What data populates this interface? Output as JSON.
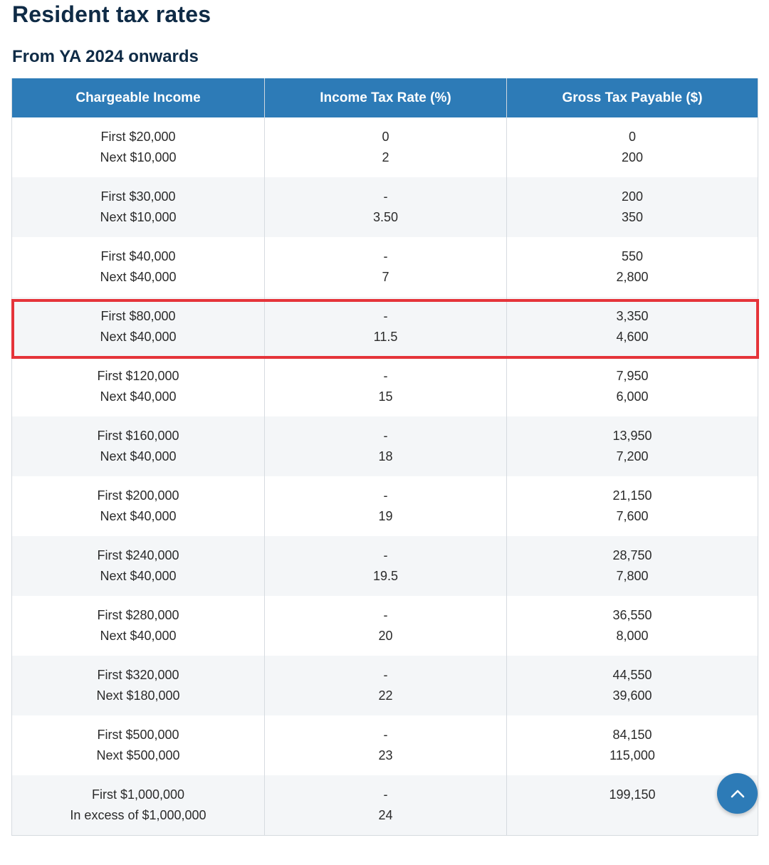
{
  "page": {
    "title": "Resident tax rates",
    "subtitle": "From YA 2024 onwards"
  },
  "table": {
    "headers": [
      "Chargeable Income",
      "Income Tax Rate (%)",
      "Gross Tax Payable ($)"
    ],
    "rows": [
      {
        "income": [
          "First $20,000",
          "Next $10,000"
        ],
        "rate": [
          "0",
          "2"
        ],
        "payable": [
          "0",
          "200"
        ]
      },
      {
        "income": [
          "First $30,000",
          "Next $10,000"
        ],
        "rate": [
          "-",
          "3.50"
        ],
        "payable": [
          "200",
          "350"
        ]
      },
      {
        "income": [
          "First $40,000",
          "Next $40,000"
        ],
        "rate": [
          "-",
          "7"
        ],
        "payable": [
          "550",
          "2,800"
        ]
      },
      {
        "income": [
          "First $80,000",
          "Next $40,000"
        ],
        "rate": [
          "-",
          "11.5"
        ],
        "payable": [
          "3,350",
          "4,600"
        ]
      },
      {
        "income": [
          "First $120,000",
          "Next $40,000"
        ],
        "rate": [
          "-",
          "15"
        ],
        "payable": [
          "7,950",
          "6,000"
        ]
      },
      {
        "income": [
          "First $160,000",
          "Next $40,000"
        ],
        "rate": [
          "-",
          "18"
        ],
        "payable": [
          "13,950",
          "7,200"
        ]
      },
      {
        "income": [
          "First $200,000",
          "Next $40,000"
        ],
        "rate": [
          "-",
          "19"
        ],
        "payable": [
          "21,150",
          "7,600"
        ]
      },
      {
        "income": [
          "First $240,000",
          "Next $40,000"
        ],
        "rate": [
          "-",
          "19.5"
        ],
        "payable": [
          "28,750",
          "7,800"
        ]
      },
      {
        "income": [
          "First $280,000",
          "Next $40,000"
        ],
        "rate": [
          "-",
          "20"
        ],
        "payable": [
          "36,550",
          "8,000"
        ]
      },
      {
        "income": [
          "First $320,000",
          "Next $180,000"
        ],
        "rate": [
          "-",
          "22"
        ],
        "payable": [
          "44,550",
          "39,600"
        ]
      },
      {
        "income": [
          "First $500,000",
          "Next $500,000"
        ],
        "rate": [
          "-",
          "23"
        ],
        "payable": [
          "84,150",
          "115,000"
        ]
      },
      {
        "income": [
          "First $1,000,000",
          "In excess of $1,000,000"
        ],
        "rate": [
          "-",
          "24"
        ],
        "payable": [
          "199,150",
          ""
        ]
      }
    ],
    "highlighted_row_index": 3
  },
  "colors": {
    "header_bg": "#2d7bb7",
    "title_text": "#0f2b46",
    "highlight_border": "#e5343a"
  },
  "icons": {
    "scroll_top": "chevron-up-icon"
  }
}
